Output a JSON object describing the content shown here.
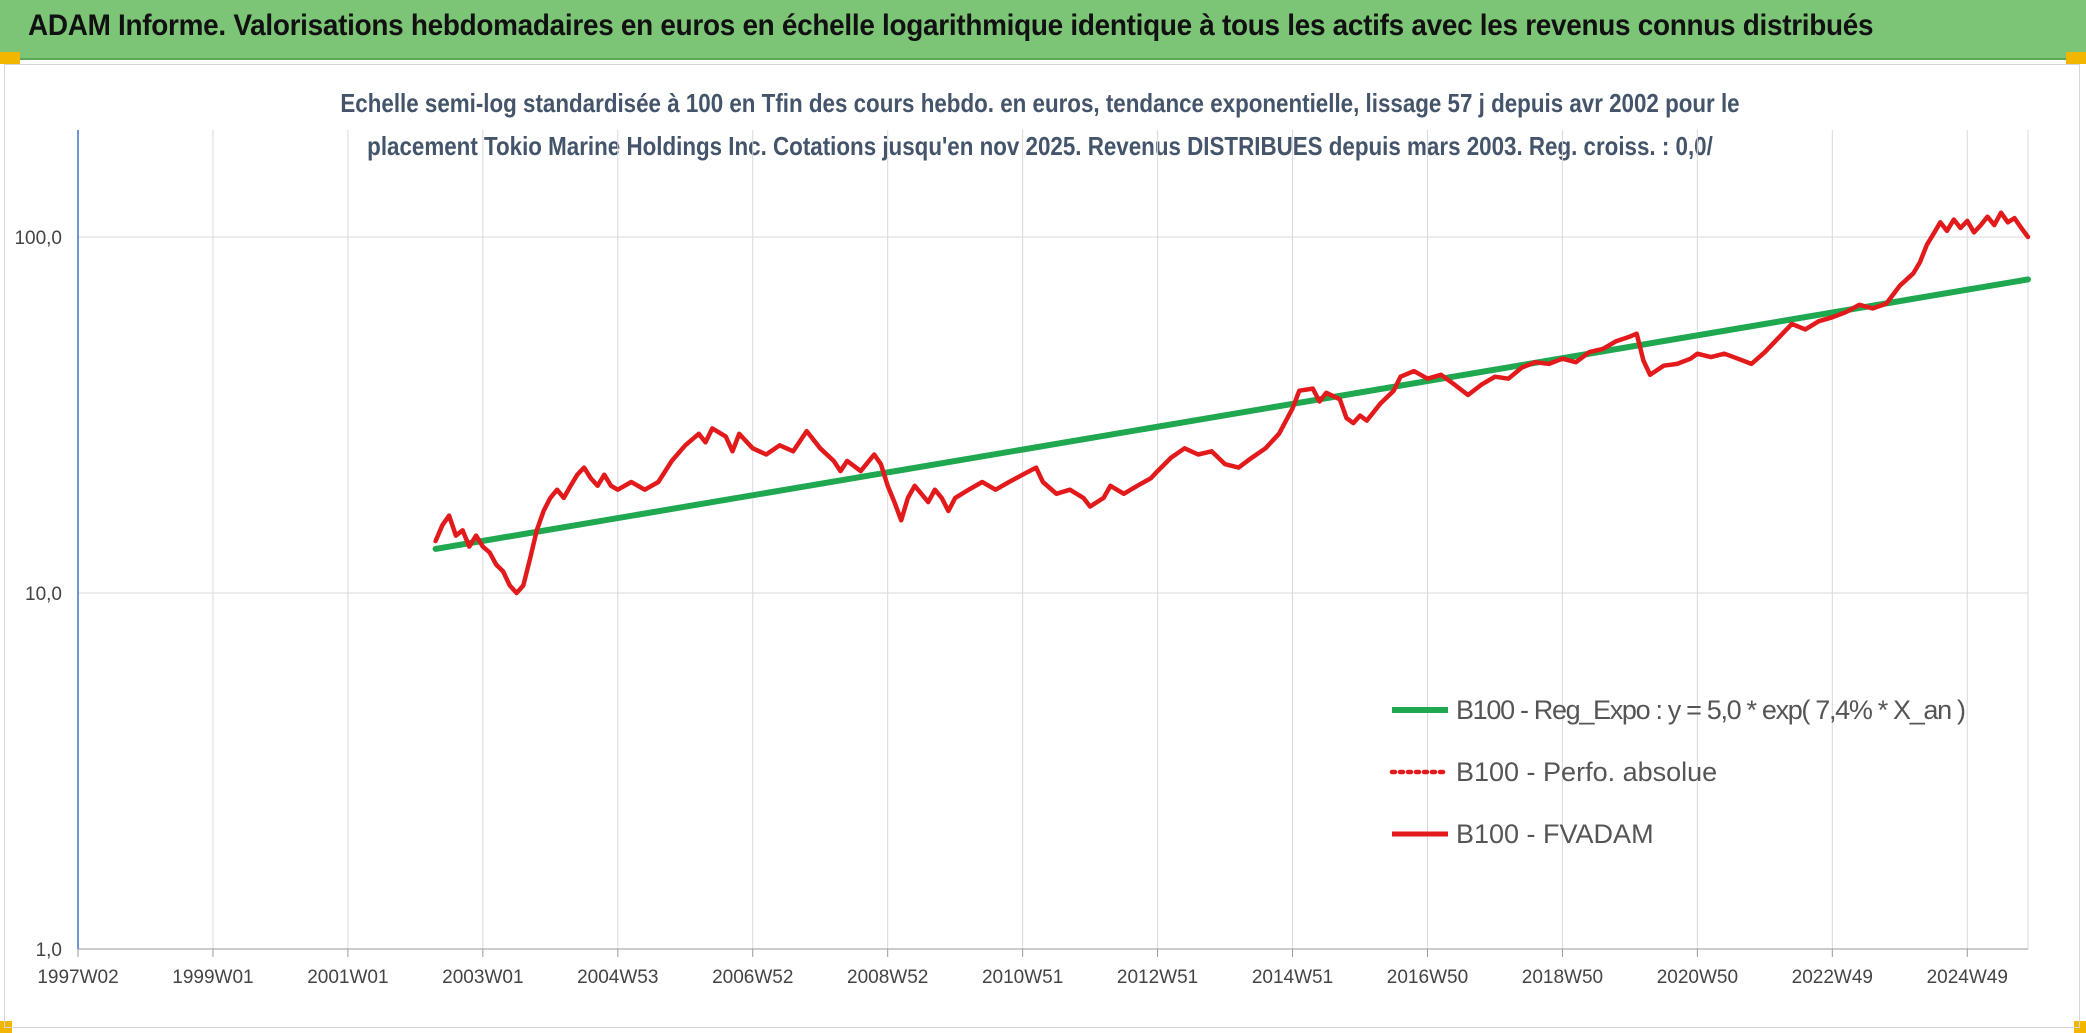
{
  "banner": {
    "title": "ADAM Informe. Valorisations hebdomadaires en euros en échelle logarithmique identique à tous les actifs avec les revenus connus distribués"
  },
  "colors": {
    "banner_bg": "#7cc576",
    "accent_corner": "#f2b600",
    "trend_line": "#1fa84f",
    "perf_line": "#e31a1c",
    "fvadam_line": "#e31a1c",
    "grid": "#d9d9d9",
    "axis": "#4472c4"
  },
  "chart_data": {
    "type": "line",
    "title_line1": "Echelle semi-log standardisée à 100 en Tfin des cours hebdo. en euros, tendance exponentielle, lissage 57 j depuis avr 2002 pour le",
    "title_line2": "placement Tokio Marine Holdings Inc. Cotations jusqu'en nov 2025. Revenus DISTRIBUES depuis mars 2003. Reg. croiss. : 0,0/",
    "yscale": "log",
    "ylim": [
      1,
      200
    ],
    "xlim": [
      1997.0,
      2025.9
    ],
    "y_ticks": [
      {
        "value": 1,
        "label": "1,0"
      },
      {
        "value": 10,
        "label": "10,0"
      },
      {
        "value": 100,
        "label": "100,0"
      }
    ],
    "x_ticks": [
      {
        "value": 1997.0,
        "label": "1997W02"
      },
      {
        "value": 1999.0,
        "label": "1999W01"
      },
      {
        "value": 2001.0,
        "label": "2001W01"
      },
      {
        "value": 2003.0,
        "label": "2003W01"
      },
      {
        "value": 2005.0,
        "label": "2004W53"
      },
      {
        "value": 2007.0,
        "label": "2006W52"
      },
      {
        "value": 2009.0,
        "label": "2008W52"
      },
      {
        "value": 2011.0,
        "label": "2010W51"
      },
      {
        "value": 2013.0,
        "label": "2012W51"
      },
      {
        "value": 2015.0,
        "label": "2014W51"
      },
      {
        "value": 2017.0,
        "label": "2016W50"
      },
      {
        "value": 2019.0,
        "label": "2018W50"
      },
      {
        "value": 2021.0,
        "label": "2020W50"
      },
      {
        "value": 2023.0,
        "label": "2022W49"
      },
      {
        "value": 2025.0,
        "label": "2024W49"
      }
    ],
    "legend": [
      {
        "key": "trend",
        "label": "B100 - Reg_Expo : y = 5,0 * exp( 7,4% *  X_an )",
        "style": "solid-green"
      },
      {
        "key": "perf",
        "label": "B100 - Perfo. absolue",
        "style": "dotted-red"
      },
      {
        "key": "fvadam",
        "label": "B100 - FVADAM",
        "style": "solid-red"
      }
    ],
    "series": [
      {
        "name": "B100 - Reg_Expo",
        "points": [
          [
            2002.3,
            13.3
          ],
          [
            2025.9,
            76
          ]
        ]
      },
      {
        "name": "B100 - FVADAM",
        "points": [
          [
            2002.3,
            14.0
          ],
          [
            2002.4,
            15.5
          ],
          [
            2002.5,
            16.5
          ],
          [
            2002.6,
            14.5
          ],
          [
            2002.7,
            15.0
          ],
          [
            2002.8,
            13.5
          ],
          [
            2002.9,
            14.5
          ],
          [
            2003.0,
            13.5
          ],
          [
            2003.1,
            13.0
          ],
          [
            2003.2,
            12.0
          ],
          [
            2003.3,
            11.5
          ],
          [
            2003.4,
            10.5
          ],
          [
            2003.5,
            10.0
          ],
          [
            2003.6,
            10.5
          ],
          [
            2003.7,
            12.5
          ],
          [
            2003.8,
            15.0
          ],
          [
            2003.9,
            17.0
          ],
          [
            2004.0,
            18.5
          ],
          [
            2004.1,
            19.5
          ],
          [
            2004.2,
            18.5
          ],
          [
            2004.3,
            20.0
          ],
          [
            2004.4,
            21.5
          ],
          [
            2004.5,
            22.5
          ],
          [
            2004.6,
            21.0
          ],
          [
            2004.7,
            20.0
          ],
          [
            2004.8,
            21.5
          ],
          [
            2004.9,
            20.0
          ],
          [
            2005.0,
            19.5
          ],
          [
            2005.2,
            20.5
          ],
          [
            2005.4,
            19.5
          ],
          [
            2005.6,
            20.5
          ],
          [
            2005.8,
            23.5
          ],
          [
            2006.0,
            26.0
          ],
          [
            2006.2,
            28.0
          ],
          [
            2006.3,
            26.5
          ],
          [
            2006.4,
            29.0
          ],
          [
            2006.6,
            27.5
          ],
          [
            2006.7,
            25.0
          ],
          [
            2006.8,
            28.0
          ],
          [
            2007.0,
            25.5
          ],
          [
            2007.2,
            24.5
          ],
          [
            2007.4,
            26.0
          ],
          [
            2007.6,
            25.0
          ],
          [
            2007.8,
            28.5
          ],
          [
            2008.0,
            25.5
          ],
          [
            2008.2,
            23.5
          ],
          [
            2008.3,
            22.0
          ],
          [
            2008.4,
            23.5
          ],
          [
            2008.6,
            22.0
          ],
          [
            2008.8,
            24.5
          ],
          [
            2008.9,
            23.0
          ],
          [
            2009.0,
            20.0
          ],
          [
            2009.1,
            18.0
          ],
          [
            2009.2,
            16.0
          ],
          [
            2009.3,
            18.5
          ],
          [
            2009.4,
            20.0
          ],
          [
            2009.5,
            19.0
          ],
          [
            2009.6,
            18.0
          ],
          [
            2009.7,
            19.5
          ],
          [
            2009.8,
            18.5
          ],
          [
            2009.9,
            17.0
          ],
          [
            2010.0,
            18.5
          ],
          [
            2010.2,
            19.5
          ],
          [
            2010.4,
            20.5
          ],
          [
            2010.6,
            19.5
          ],
          [
            2010.8,
            20.5
          ],
          [
            2011.0,
            21.5
          ],
          [
            2011.2,
            22.5
          ],
          [
            2011.3,
            20.5
          ],
          [
            2011.5,
            19.0
          ],
          [
            2011.7,
            19.5
          ],
          [
            2011.9,
            18.5
          ],
          [
            2012.0,
            17.5
          ],
          [
            2012.2,
            18.5
          ],
          [
            2012.3,
            20.0
          ],
          [
            2012.5,
            19.0
          ],
          [
            2012.7,
            20.0
          ],
          [
            2012.9,
            21.0
          ],
          [
            2013.0,
            22.0
          ],
          [
            2013.2,
            24.0
          ],
          [
            2013.4,
            25.5
          ],
          [
            2013.6,
            24.5
          ],
          [
            2013.8,
            25.0
          ],
          [
            2014.0,
            23.0
          ],
          [
            2014.2,
            22.5
          ],
          [
            2014.4,
            24.0
          ],
          [
            2014.6,
            25.5
          ],
          [
            2014.8,
            28.0
          ],
          [
            2015.0,
            33.0
          ],
          [
            2015.1,
            37.0
          ],
          [
            2015.3,
            37.5
          ],
          [
            2015.4,
            34.5
          ],
          [
            2015.5,
            36.5
          ],
          [
            2015.7,
            35.0
          ],
          [
            2015.8,
            31.0
          ],
          [
            2015.9,
            30.0
          ],
          [
            2016.0,
            31.5
          ],
          [
            2016.1,
            30.5
          ],
          [
            2016.3,
            34.0
          ],
          [
            2016.5,
            37.0
          ],
          [
            2016.6,
            40.5
          ],
          [
            2016.8,
            42.0
          ],
          [
            2017.0,
            40.0
          ],
          [
            2017.2,
            41.0
          ],
          [
            2017.4,
            38.5
          ],
          [
            2017.6,
            36.0
          ],
          [
            2017.8,
            38.5
          ],
          [
            2018.0,
            40.5
          ],
          [
            2018.2,
            40.0
          ],
          [
            2018.4,
            43.0
          ],
          [
            2018.6,
            44.5
          ],
          [
            2018.8,
            44.0
          ],
          [
            2019.0,
            45.5
          ],
          [
            2019.2,
            44.5
          ],
          [
            2019.4,
            47.5
          ],
          [
            2019.6,
            48.5
          ],
          [
            2019.8,
            51.0
          ],
          [
            2020.0,
            52.5
          ],
          [
            2020.1,
            53.5
          ],
          [
            2020.2,
            45.0
          ],
          [
            2020.3,
            41.0
          ],
          [
            2020.5,
            43.5
          ],
          [
            2020.7,
            44.0
          ],
          [
            2020.9,
            45.5
          ],
          [
            2021.0,
            47.0
          ],
          [
            2021.2,
            46.0
          ],
          [
            2021.4,
            47.0
          ],
          [
            2021.6,
            45.5
          ],
          [
            2021.8,
            44.0
          ],
          [
            2022.0,
            47.5
          ],
          [
            2022.2,
            52.0
          ],
          [
            2022.4,
            57.0
          ],
          [
            2022.6,
            55.0
          ],
          [
            2022.8,
            58.0
          ],
          [
            2023.0,
            59.5
          ],
          [
            2023.2,
            61.5
          ],
          [
            2023.4,
            64.5
          ],
          [
            2023.6,
            63.0
          ],
          [
            2023.8,
            65.0
          ],
          [
            2024.0,
            73.0
          ],
          [
            2024.2,
            79.0
          ],
          [
            2024.3,
            85.0
          ],
          [
            2024.4,
            95.0
          ],
          [
            2024.5,
            102.0
          ],
          [
            2024.6,
            110.0
          ],
          [
            2024.7,
            104.0
          ],
          [
            2024.8,
            112.0
          ],
          [
            2024.9,
            106.0
          ],
          [
            2025.0,
            111.0
          ],
          [
            2025.1,
            103.0
          ],
          [
            2025.2,
            108.0
          ],
          [
            2025.3,
            114.0
          ],
          [
            2025.4,
            108.0
          ],
          [
            2025.5,
            117.0
          ],
          [
            2025.6,
            110.0
          ],
          [
            2025.7,
            113.0
          ],
          [
            2025.8,
            106.0
          ],
          [
            2025.9,
            100.0
          ]
        ]
      }
    ]
  }
}
